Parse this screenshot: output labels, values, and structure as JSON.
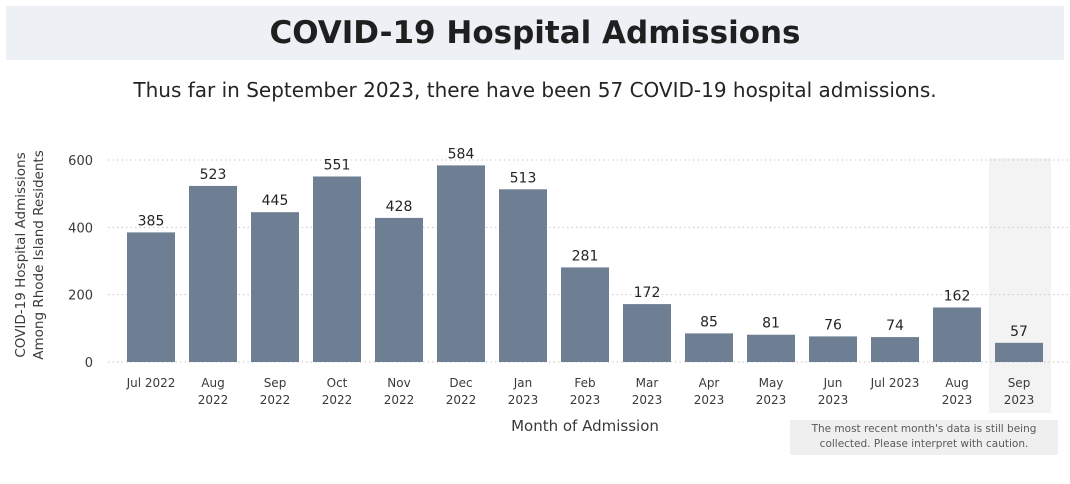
{
  "header": {
    "title": "COVID-19 Hospital Admissions",
    "subtitle": "Thus far in September 2023, there have been 57 COVID-19 hospital admissions."
  },
  "note": {
    "line1": "The most recent month's data is still being",
    "line2": "collected. Please interpret with caution."
  },
  "colors": {
    "bar": "#6e7f93",
    "highlight_band": "#f3f3f3",
    "grid": "#c8c8c8"
  },
  "chart_data": {
    "type": "bar",
    "title": "",
    "xlabel": "Month of Admission",
    "ylabel": [
      "COVID-19 Hospital Admissions",
      "Among Rhode Island Residents"
    ],
    "ylim": [
      0,
      600
    ],
    "yticks": [
      0,
      200,
      400,
      600
    ],
    "grid": true,
    "categories": [
      [
        "Jul 2022"
      ],
      [
        "Aug",
        "2022"
      ],
      [
        "Sep",
        "2022"
      ],
      [
        "Oct",
        "2022"
      ],
      [
        "Nov",
        "2022"
      ],
      [
        "Dec",
        "2022"
      ],
      [
        "Jan",
        "2023"
      ],
      [
        "Feb",
        "2023"
      ],
      [
        "Mar",
        "2023"
      ],
      [
        "Apr",
        "2023"
      ],
      [
        "May",
        "2023"
      ],
      [
        "Jun",
        "2023"
      ],
      [
        "Jul 2023"
      ],
      [
        "Aug",
        "2023"
      ],
      [
        "Sep",
        "2023"
      ]
    ],
    "values": [
      385,
      523,
      445,
      551,
      428,
      584,
      513,
      281,
      172,
      85,
      81,
      76,
      74,
      162,
      57
    ],
    "highlighted_category_index": 14
  }
}
